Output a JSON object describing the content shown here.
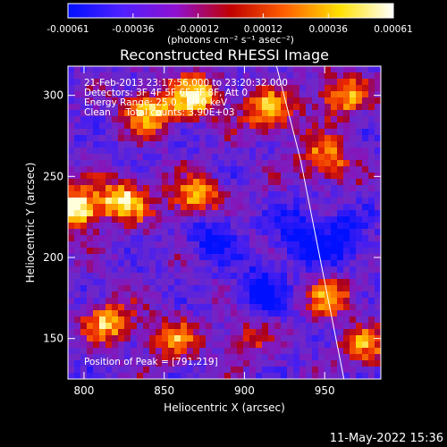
{
  "chart_data": {
    "type": "heatmap",
    "title": "Reconstructed RHESSI Image",
    "xlabel": "Heliocentric X (arcsec)",
    "ylabel": "Heliocentric Y (arcsec)",
    "xlim": [
      790,
      985
    ],
    "ylim": [
      125,
      318
    ],
    "x_ticks": [
      800,
      850,
      900,
      950
    ],
    "y_ticks": [
      150,
      200,
      250,
      300
    ],
    "colorbar": {
      "label": "(photons cm⁻² s⁻¹ asec⁻²)",
      "range": [
        -0.00061,
        0.00061
      ],
      "tick_labels": [
        "-0.00061",
        "-0.00036",
        "-0.00012",
        "0.00012",
        "0.00036",
        "0.00061"
      ],
      "colormap": [
        "#0010ff",
        "#5020ff",
        "#9010d0",
        "#c00000",
        "#ff6000",
        "#ffe000",
        "#ffffff"
      ]
    },
    "annotations": [
      "21-Feb-2013 23:17:56.000 to 23:20:32.000",
      "Detectors: 3F 4F 5F 6F 7F 8F, Att 0",
      "Energy Range: 25.0 - 50.0 keV",
      "Clean     Total counts: 3.90E+03"
    ],
    "peak_label": "Position of Peak = [791,219]",
    "limb_curve": [
      [
        920,
        318
      ],
      [
        935,
        260
      ],
      [
        945,
        210
      ],
      [
        953,
        170
      ],
      [
        962,
        125
      ]
    ],
    "bright_regions": [
      {
        "x": 795,
        "y": 230,
        "strength": 1.0
      },
      {
        "x": 825,
        "y": 235,
        "strength": 0.85
      },
      {
        "x": 870,
        "y": 236,
        "strength": 0.8
      },
      {
        "x": 840,
        "y": 290,
        "strength": 0.8
      },
      {
        "x": 870,
        "y": 300,
        "strength": 0.85
      },
      {
        "x": 915,
        "y": 290,
        "strength": 0.75
      },
      {
        "x": 950,
        "y": 260,
        "strength": 0.7
      },
      {
        "x": 960,
        "y": 300,
        "strength": 0.7
      },
      {
        "x": 815,
        "y": 160,
        "strength": 0.7
      },
      {
        "x": 855,
        "y": 150,
        "strength": 0.55
      },
      {
        "x": 955,
        "y": 175,
        "strength": 0.6
      },
      {
        "x": 975,
        "y": 145,
        "strength": 0.55
      },
      {
        "x": 900,
        "y": 150,
        "strength": 0.4
      }
    ],
    "dim_regions": [
      {
        "x": 910,
        "y": 180
      },
      {
        "x": 880,
        "y": 215
      },
      {
        "x": 935,
        "y": 215
      },
      {
        "x": 960,
        "y": 210
      }
    ]
  },
  "footer": {
    "timestamp": "11-May-2022 15:36"
  }
}
